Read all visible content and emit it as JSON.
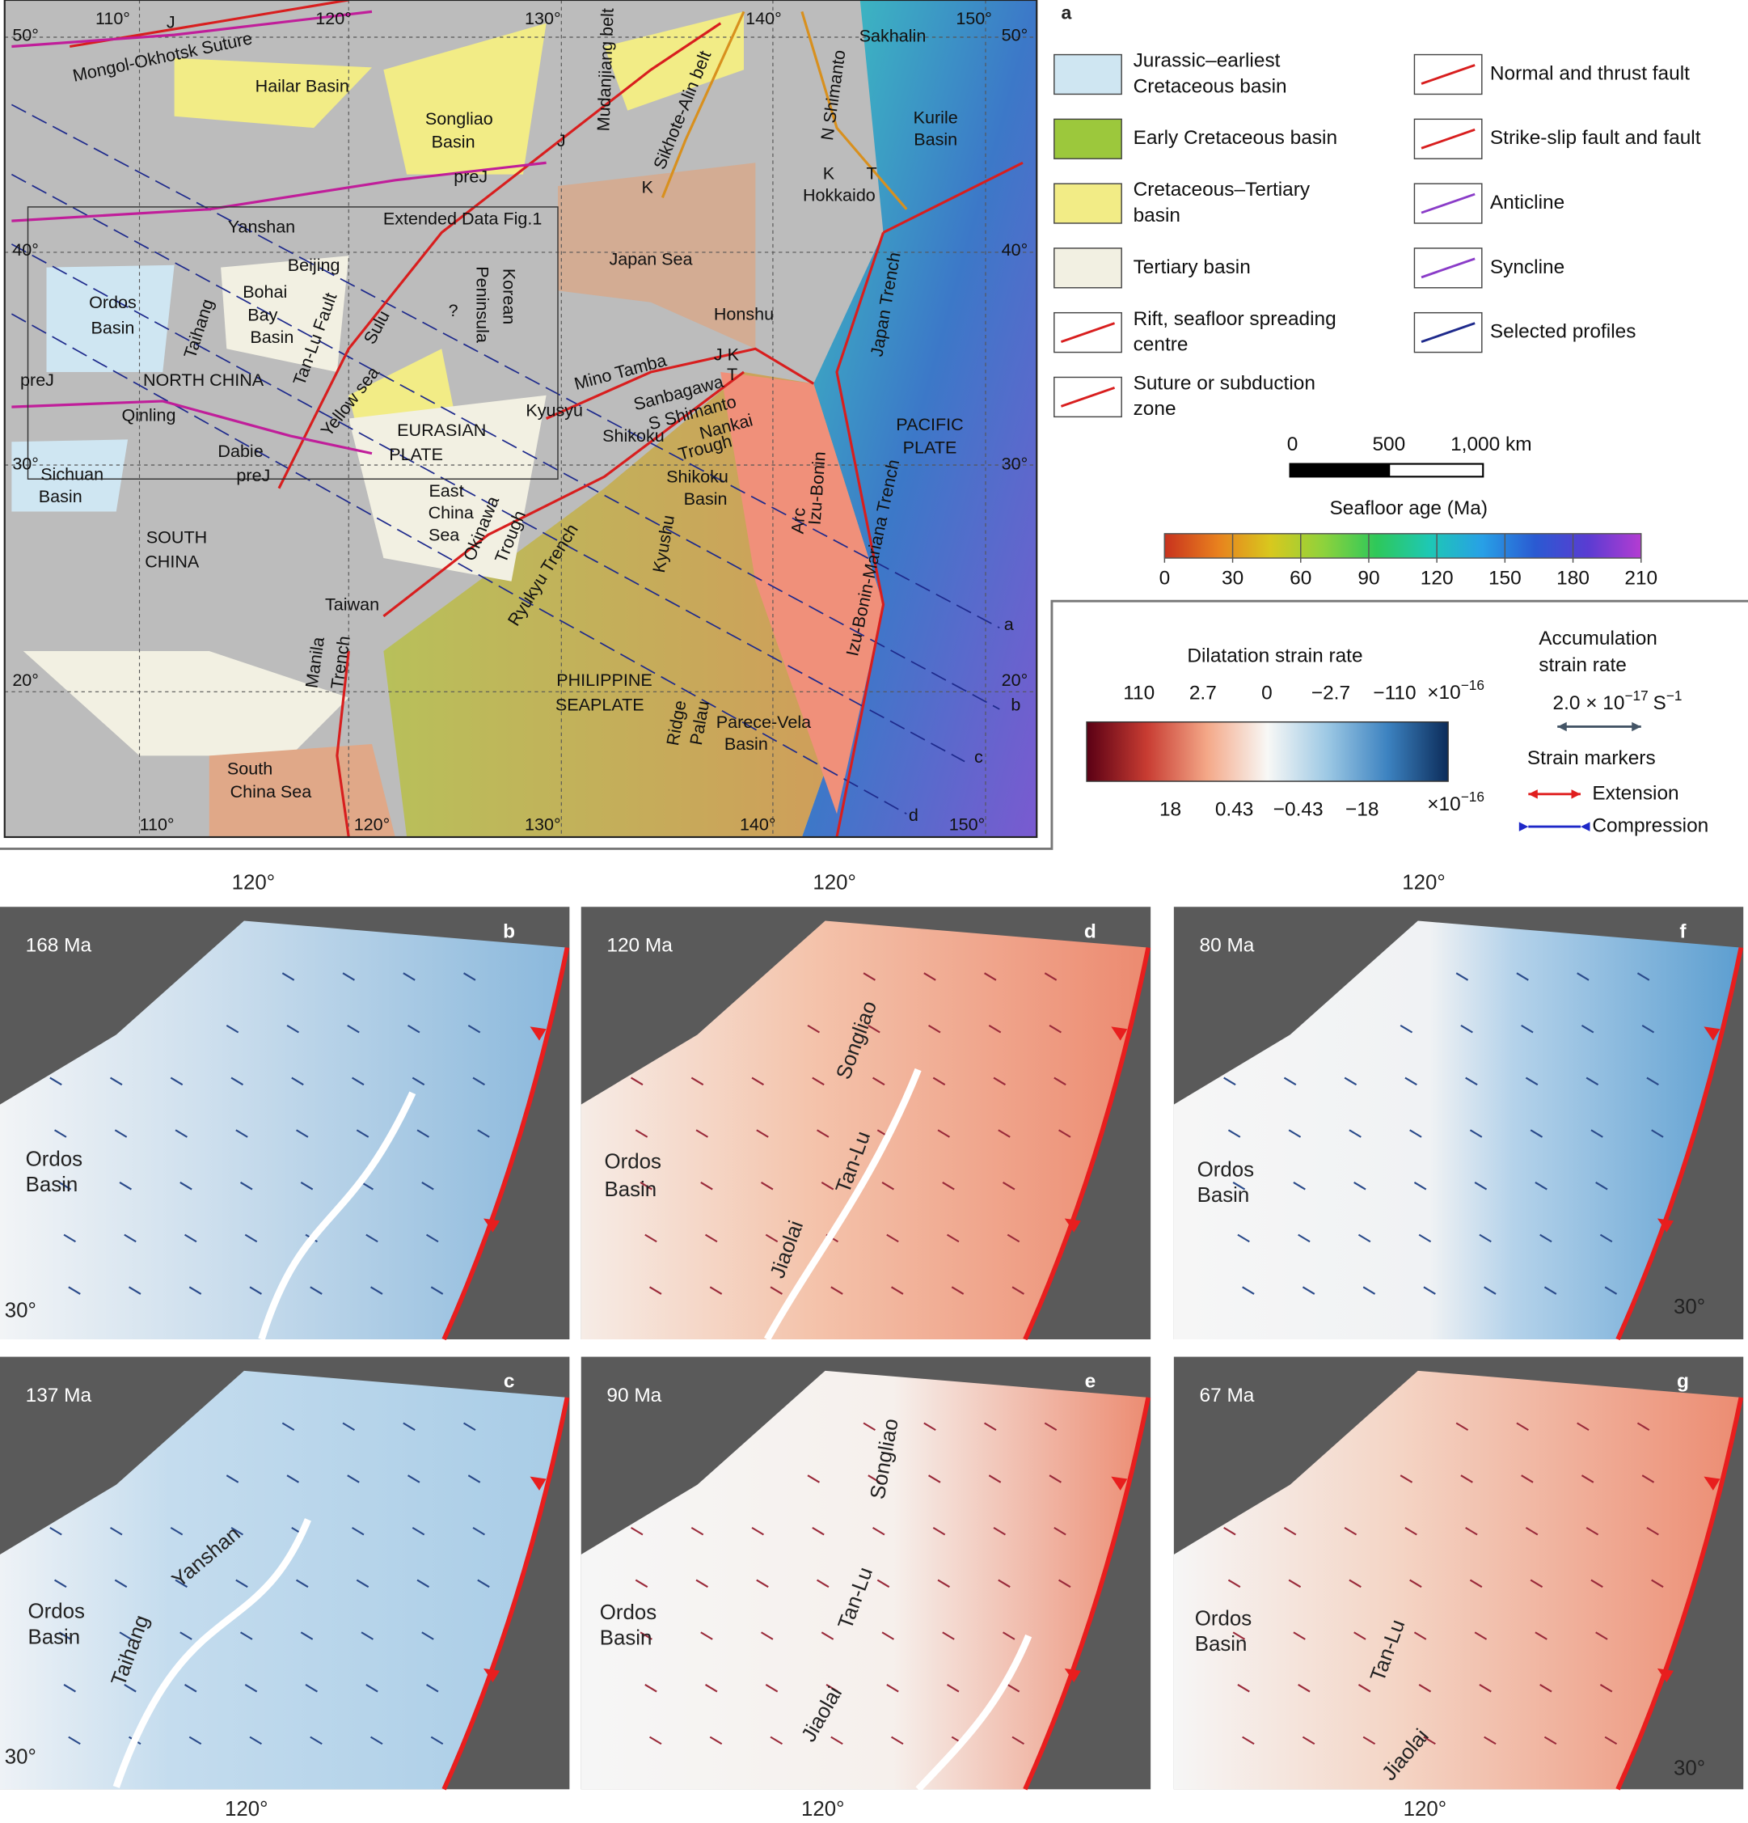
{
  "map": {
    "panel_label": "a",
    "lon_top": [
      "110°",
      "120°",
      "130°",
      "140°",
      "150°"
    ],
    "lon_bottom": [
      "110°",
      "120°",
      "130°",
      "140°",
      "150°"
    ],
    "lat_left": [
      "50°",
      "40°",
      "30°",
      "20°"
    ],
    "lat_right": [
      "50°",
      "40°",
      "30°",
      "20°"
    ],
    "labels": [
      "J",
      "Mongol-Okhotsk Suture",
      "Hailar Basin",
      "Songliao",
      "Basin",
      "Mudanjiang belt",
      "Sikhote-Alin belt",
      "Sakhalin",
      "N Shimanto",
      "Kurile",
      "Basin",
      "J",
      "preJ",
      "K",
      "K",
      "T",
      "Hokkaido",
      "Extended Data Fig.1",
      "Yanshan",
      "Beijing",
      "Korean",
      "Peninsula",
      "Japan Sea",
      "Ordos",
      "Basin",
      "Taihang",
      "Bohai",
      "Bay",
      "Basin",
      "Tan-Lu Fault",
      "Sulu",
      "?",
      "Honshu",
      "Japan Trench",
      "preJ",
      "NORTH CHINA",
      "Yellow sea",
      "Mino Tamba",
      "J K",
      "T",
      "Sanbagawa",
      "Kyusyu",
      "S Shimanto",
      "Qinling",
      "Shikoku",
      "Nankai",
      "Trough",
      "EURASIAN",
      "PLATE",
      "PACIFIC",
      "PLATE",
      "Dabie",
      "Izu-Bonin",
      "Arc",
      "Izu-Bonin-Mariana Trench",
      "Sichuan",
      "Basin",
      "preJ",
      "Shikoku",
      "Basin",
      "Kyushu",
      "East",
      "China",
      "Sea",
      "Okinawa",
      "Trough",
      "SOUTH",
      "CHINA",
      "Ryukyu Trench",
      "Taiwan",
      "Manila",
      "Trench",
      "PHILIPPINE",
      "SEAPLATE",
      "Palau",
      "Ridge",
      "Parece-Vela",
      "Basin",
      "South",
      "China Sea"
    ],
    "profile_labels": [
      "a",
      "b",
      "c",
      "d"
    ]
  },
  "legend": {
    "items": [
      {
        "lines": [
          "Jurassic–earliest",
          "Cretaceous basin"
        ]
      },
      {
        "lines": [
          "Early Cretaceous basin"
        ]
      },
      {
        "lines": [
          "Cretaceous–Tertiary",
          "basin"
        ]
      },
      {
        "lines": [
          "Tertiary basin"
        ]
      },
      {
        "lines": [
          "Rift, seafloor spreading",
          "centre"
        ]
      },
      {
        "lines": [
          "Suture or subduction",
          "zone"
        ]
      },
      {
        "lines": [
          "Normal and thrust fault"
        ]
      },
      {
        "lines": [
          "Strike-slip fault and fault"
        ]
      },
      {
        "lines": [
          "Anticline"
        ]
      },
      {
        "lines": [
          "Syncline"
        ]
      },
      {
        "lines": [
          "Selected profiles"
        ]
      }
    ]
  },
  "scale_bar": {
    "labels": [
      "0",
      "500",
      "1,000 km"
    ]
  },
  "seafloor_age": {
    "title": "Seafloor age (Ma)",
    "lim": [
      0,
      210
    ],
    "ticks": [
      0,
      30,
      60,
      90,
      120,
      150,
      180,
      210
    ],
    "colors": [
      "#c8321e",
      "#e8801e",
      "#d8c81e",
      "#8ed23c",
      "#2ec85a",
      "#1ec8b4",
      "#28a0e6",
      "#2a5ad2",
      "#5a3cd2",
      "#b43cd2"
    ]
  },
  "dilatation": {
    "title": "Dilatation strain rate",
    "top_labels": [
      "110",
      "2.7",
      "0",
      "−2.7",
      "−110"
    ],
    "bottom_labels": [
      "18",
      "0.43",
      "−0.43",
      "−18"
    ],
    "unit_base": "×10",
    "unit_exp": "−16",
    "colors": [
      "#5a0014",
      "#c83c32",
      "#f4a888",
      "#f8f8f6",
      "#9cc8e4",
      "#3c82c0",
      "#0c2c5a"
    ]
  },
  "accumulation": {
    "title_lines": [
      "Accumulation",
      "strain rate"
    ],
    "value": "2.0 × 10",
    "value_exp": "−17",
    "unit": "S",
    "unit_exp": "−1"
  },
  "strain_markers": {
    "title": "Strain markers",
    "extension": "Extension",
    "compression": "Compression"
  },
  "panels": {
    "lon_top": [
      "120°",
      "120°",
      "120°"
    ],
    "lon_bottom": [
      "120°",
      "120°",
      "120°"
    ],
    "items": [
      {
        "label": "b",
        "age": "168 Ma",
        "texts": [
          "Ordos",
          "Basin",
          "30°"
        ]
      },
      {
        "label": "c",
        "age": "137 Ma",
        "texts": [
          "Yanshan",
          "Taihang",
          "Ordos",
          "Basin",
          "30°"
        ]
      },
      {
        "label": "d",
        "age": "120 Ma",
        "texts": [
          "Songliao",
          "Tan-Lu",
          "Jiaolai",
          "Ordos",
          "Basin"
        ]
      },
      {
        "label": "e",
        "age": "90 Ma",
        "texts": [
          "Songliao",
          "Tan-Lu",
          "Jiaolai",
          "Ordos",
          "Basin"
        ]
      },
      {
        "label": "f",
        "age": "80 Ma",
        "texts": [
          "Ordos",
          "Basin",
          "30°"
        ]
      },
      {
        "label": "g",
        "age": "67 Ma",
        "texts": [
          "Tan-Lu",
          "Jiaolai",
          "Ordos",
          "Basin",
          "30°"
        ]
      }
    ]
  }
}
